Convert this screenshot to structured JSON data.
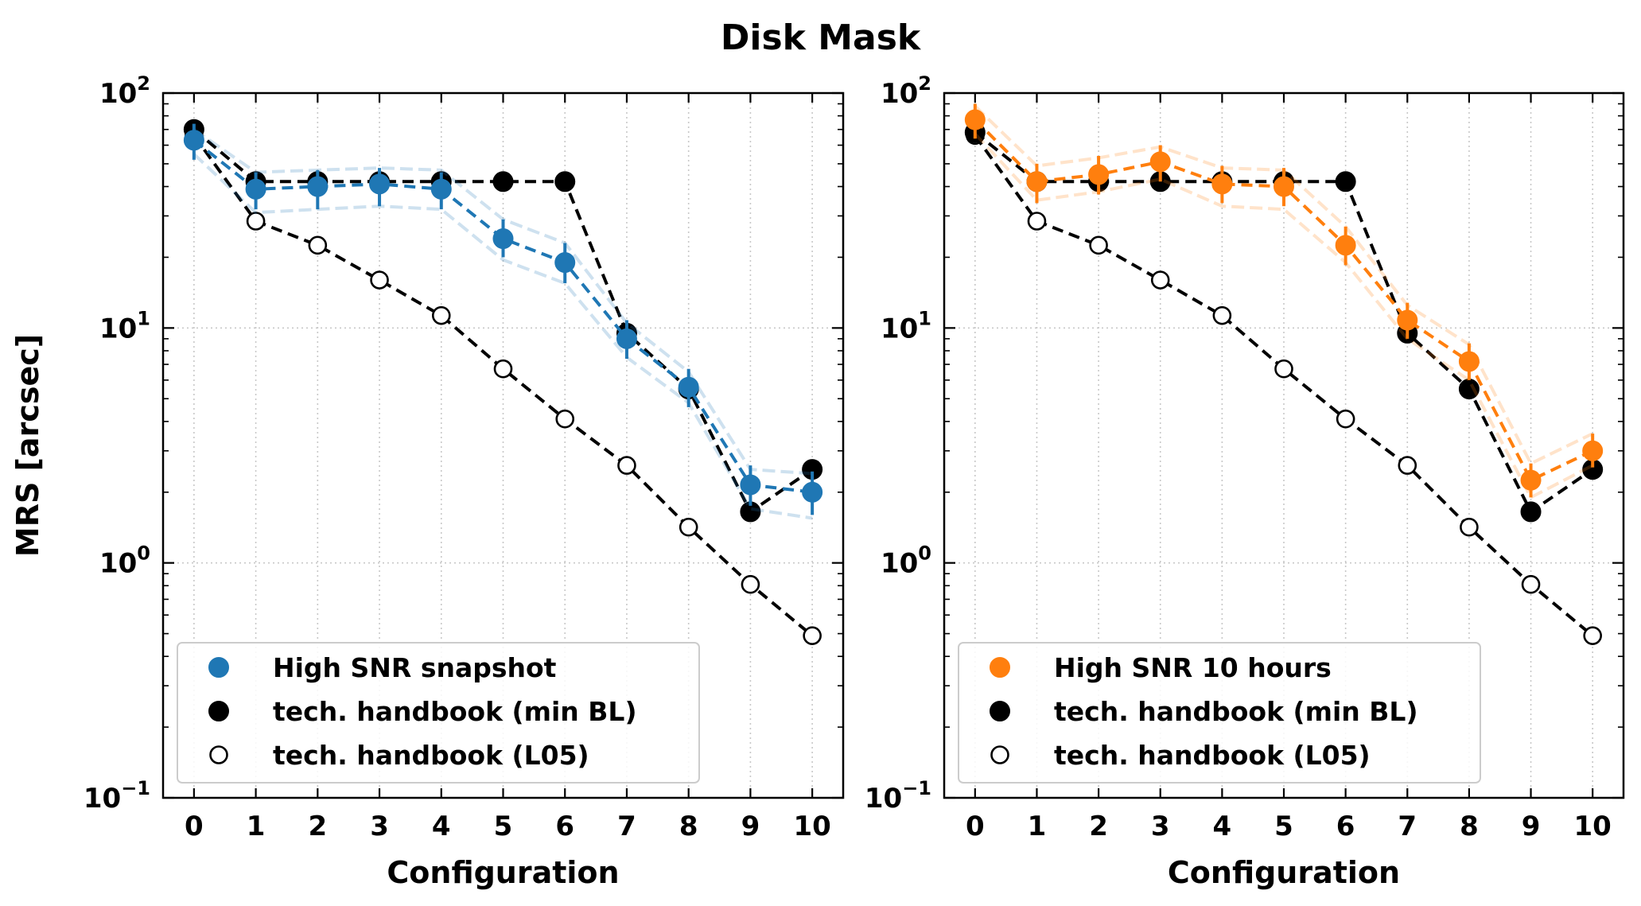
{
  "figure": {
    "title": "Disk Mask"
  },
  "chart_data": [
    {
      "type": "scatter",
      "panel": "left",
      "xlabel": "Configuration",
      "ylabel": "MRS [arcsec]",
      "yscale": "log",
      "ylim": [
        0.1,
        100
      ],
      "xlim": [
        -0.5,
        10.5
      ],
      "x_ticks": [
        0,
        1,
        2,
        3,
        4,
        5,
        6,
        7,
        8,
        9,
        10
      ],
      "y_tick_labels": [
        {
          "value": 100,
          "base": "10",
          "exp": "2"
        },
        {
          "value": 10,
          "base": "10",
          "exp": "1"
        },
        {
          "value": 1,
          "base": "10",
          "exp": "0"
        },
        {
          "value": 0.1,
          "base": "10",
          "exp": "−1"
        }
      ],
      "grid": true,
      "legend": "lower-left",
      "series": [
        {
          "name": "High SNR snapshot",
          "color": "#1f77b4",
          "marker": "filled-circle",
          "x": [
            0,
            1,
            2,
            3,
            4,
            5,
            6,
            7,
            8,
            9,
            10
          ],
          "y": [
            63,
            39,
            40,
            41,
            39,
            24,
            19,
            9.0,
            5.6,
            2.15,
            2.0
          ],
          "yerr_low": [
            52,
            32,
            32,
            33,
            32,
            20,
            15.5,
            7.4,
            4.6,
            1.75,
            1.6
          ],
          "yerr_high": [
            74,
            46,
            47,
            48,
            46,
            29,
            23,
            10.8,
            6.7,
            2.6,
            2.45
          ],
          "band_low": [
            55,
            31,
            32,
            33,
            32,
            19.5,
            15.5,
            7.5,
            4.8,
            1.7,
            1.55
          ],
          "band_high": [
            70,
            46,
            47,
            48,
            47,
            29,
            23,
            10.5,
            6.5,
            2.5,
            2.4
          ]
        },
        {
          "name": "tech. handbook (min BL)",
          "color": "#000000",
          "marker": "filled-circle",
          "x": [
            0,
            1,
            2,
            3,
            4,
            5,
            6,
            7,
            8,
            9,
            10
          ],
          "y": [
            70,
            42,
            42,
            42,
            42,
            42,
            42,
            9.5,
            5.5,
            1.65,
            2.5
          ]
        },
        {
          "name": "tech. handbook (L05)",
          "color": "#000000",
          "marker": "open-circle",
          "x": [
            0,
            1,
            2,
            3,
            4,
            5,
            6,
            7,
            8,
            9,
            10
          ],
          "y": [
            66,
            28.5,
            22.5,
            16,
            11.3,
            6.7,
            4.1,
            2.6,
            1.42,
            0.81,
            0.49
          ]
        }
      ]
    },
    {
      "type": "scatter",
      "panel": "right",
      "xlabel": "Configuration",
      "ylabel": "",
      "yscale": "log",
      "ylim": [
        0.1,
        100
      ],
      "xlim": [
        -0.5,
        10.5
      ],
      "x_ticks": [
        0,
        1,
        2,
        3,
        4,
        5,
        6,
        7,
        8,
        9,
        10
      ],
      "y_tick_labels": [
        {
          "value": 100,
          "base": "10",
          "exp": "2"
        },
        {
          "value": 10,
          "base": "10",
          "exp": "1"
        },
        {
          "value": 1,
          "base": "10",
          "exp": "0"
        },
        {
          "value": 0.1,
          "base": "10",
          "exp": "−1"
        }
      ],
      "grid": true,
      "legend": "lower-left",
      "series": [
        {
          "name": "High SNR 10 hours",
          "color": "#ff7f0e",
          "marker": "filled-circle",
          "x": [
            0,
            1,
            2,
            3,
            4,
            5,
            6,
            7,
            8,
            9,
            10
          ],
          "y": [
            77,
            42,
            45,
            51,
            41,
            40,
            22.5,
            10.8,
            7.2,
            2.25,
            3.0
          ],
          "yerr_low": [
            64,
            34,
            37,
            42,
            34,
            33,
            18.5,
            9.0,
            6.0,
            1.9,
            2.55
          ],
          "yerr_high": [
            90,
            50,
            54,
            60,
            49,
            48,
            27,
            12.8,
            8.6,
            2.65,
            3.55
          ],
          "band_low": [
            67,
            35,
            38,
            43,
            33,
            32,
            19,
            9.0,
            6.0,
            1.9,
            2.6
          ],
          "band_high": [
            88,
            49,
            53,
            59,
            48,
            47,
            27,
            12.5,
            8.5,
            2.65,
            3.55
          ]
        },
        {
          "name": "tech. handbook (min BL)",
          "color": "#000000",
          "marker": "filled-circle",
          "x": [
            0,
            1,
            2,
            3,
            4,
            5,
            6,
            7,
            8,
            9,
            10
          ],
          "y": [
            68,
            42,
            42,
            42,
            42,
            42,
            42,
            9.5,
            5.5,
            1.65,
            2.5
          ]
        },
        {
          "name": "tech. handbook (L05)",
          "color": "#000000",
          "marker": "open-circle",
          "x": [
            0,
            1,
            2,
            3,
            4,
            5,
            6,
            7,
            8,
            9,
            10
          ],
          "y": [
            66,
            28.5,
            22.5,
            16,
            11.3,
            6.7,
            4.1,
            2.6,
            1.42,
            0.81,
            0.49
          ]
        }
      ]
    }
  ]
}
